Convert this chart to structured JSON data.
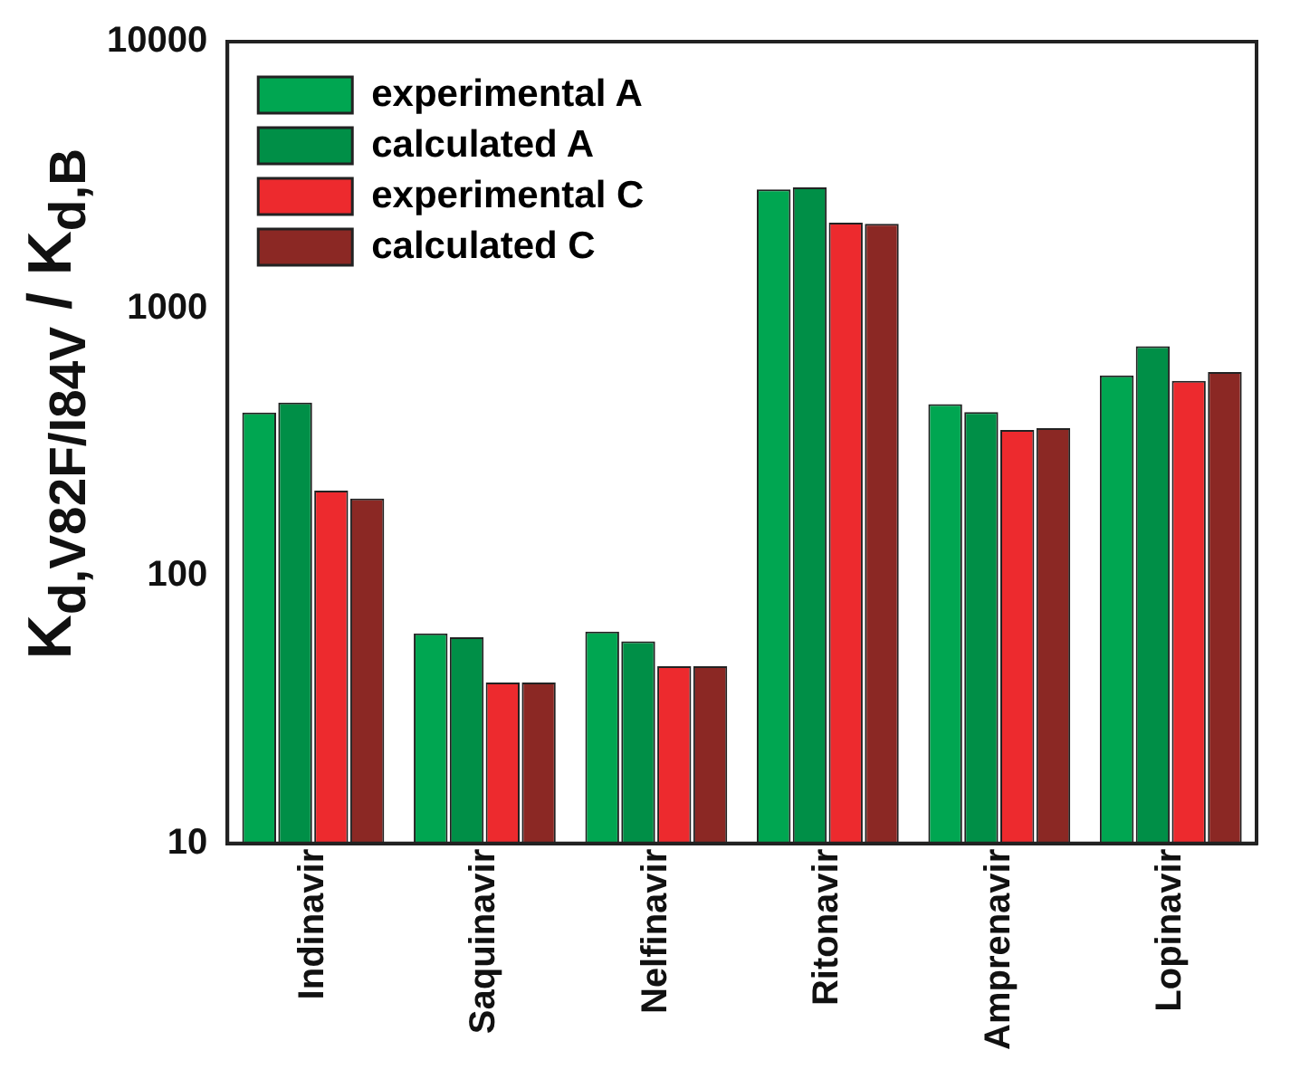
{
  "chart_data": {
    "type": "bar",
    "ylabel": "K$_{d,V82F/I84V}$ / K$_{d,B}$",
    "categories": [
      "Indinavir",
      "Saquinavir",
      "Nelfinavir",
      "Ritonavir",
      "Amprenavir",
      "Lopinavir"
    ],
    "series": [
      {
        "name": "experimental A",
        "color": "#00a651",
        "values": [
          409,
          61,
          62,
          2800,
          440,
          564
        ]
      },
      {
        "name": "calculated A",
        "color": "#008f47",
        "values": [
          446,
          59,
          57,
          2850,
          411,
          725
        ]
      },
      {
        "name": "experimental C",
        "color": "#ed2a2e",
        "values": [
          209,
          40,
          46,
          2100,
          352,
          538
        ]
      },
      {
        "name": "calculated C",
        "color": "#8b2824",
        "values": [
          195,
          40,
          46,
          2080,
          358,
          580
        ]
      }
    ],
    "log": true,
    "ylim": [
      10,
      10000
    ],
    "yticks": [
      10,
      100,
      1000,
      10000
    ],
    "grid": false,
    "legend": "top left"
  }
}
